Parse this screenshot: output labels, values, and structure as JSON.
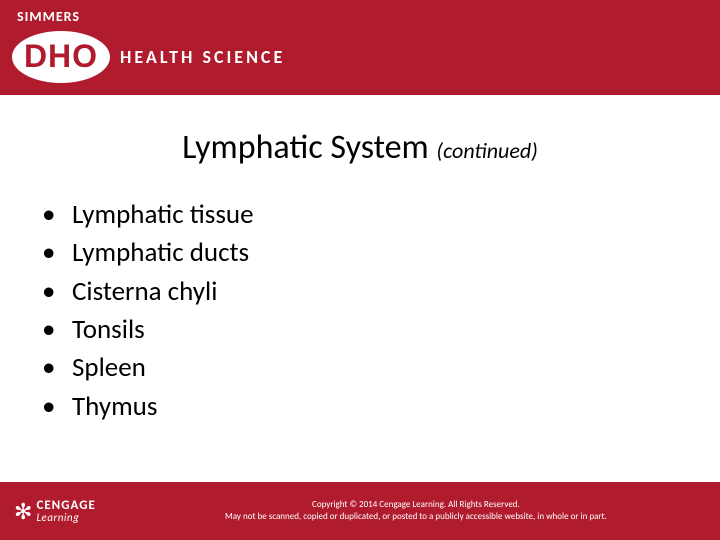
{
  "header": {
    "simmers": "SIMMERS",
    "dho": "DHO",
    "subtitle": "HEALTH SCIENCE",
    "bg_color": "#b01c2e"
  },
  "title": {
    "main": "Lymphatic System",
    "cont": "(continued)"
  },
  "bullets": [
    "Lymphatic tissue",
    "Lymphatic ducts",
    "Cisterna chyli",
    "Tonsils",
    "Spleen",
    "Thymus"
  ],
  "footer": {
    "brand_main": "CENGAGE",
    "brand_sub": "Learning",
    "copyright_line1": "Copyright © 2014 Cengage Learning. All Rights Reserved.",
    "copyright_line2": "May not be scanned, copied or duplicated, or posted to a publicly accessible website, in whole or in part."
  },
  "colors": {
    "brand_red": "#b01c2e",
    "white": "#ffffff",
    "text": "#000000"
  },
  "typography": {
    "title_size": 34,
    "bullet_size": 27,
    "footer_size": 9
  }
}
